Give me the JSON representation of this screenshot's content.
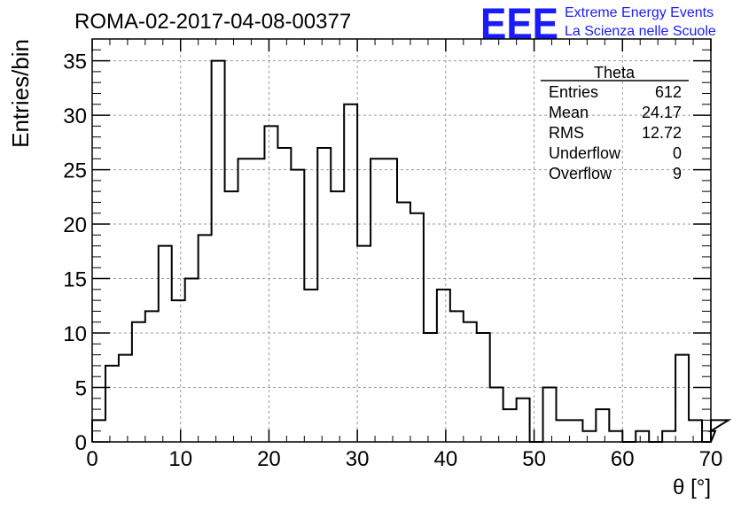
{
  "chart_data": {
    "type": "bar",
    "title": "ROMA-02-2017-04-08-00377",
    "xlabel": "θ [°]",
    "ylabel": "Entries/bin",
    "xlim": [
      0,
      70
    ],
    "ylim": [
      0,
      37
    ],
    "bin_width": 1.5,
    "xticks": [
      "0",
      "10",
      "20",
      "30",
      "40",
      "50",
      "60",
      "70"
    ],
    "yticks": [
      "0",
      "5",
      "10",
      "15",
      "20",
      "25",
      "30",
      "35"
    ],
    "grid": true,
    "values": [
      2,
      7,
      8,
      11,
      12,
      18,
      13,
      15,
      19,
      35,
      23,
      26,
      26,
      29,
      27,
      25,
      14,
      27,
      23,
      31,
      18,
      26,
      26,
      22,
      21,
      10,
      14,
      12,
      11,
      10,
      5,
      3,
      4,
      0,
      5,
      2,
      2,
      1,
      3,
      1,
      0,
      1,
      0,
      1,
      8,
      2,
      0,
      1,
      2
    ],
    "stats": {
      "name": "Theta",
      "rows": [
        {
          "label": "Entries",
          "value": "612"
        },
        {
          "label": "Mean",
          "value": "24.17"
        },
        {
          "label": "RMS",
          "value": "12.72"
        },
        {
          "label": "Underflow",
          "value": "0"
        },
        {
          "label": "Overflow",
          "value": "9"
        }
      ]
    }
  },
  "logo": {
    "mark": "EEE",
    "line1": "Extreme Energy Events",
    "line2": "La Scienza nelle Scuole",
    "color": "#1a1aff"
  },
  "colors": {
    "line": "#000000",
    "grid": "#9a9a9a"
  }
}
